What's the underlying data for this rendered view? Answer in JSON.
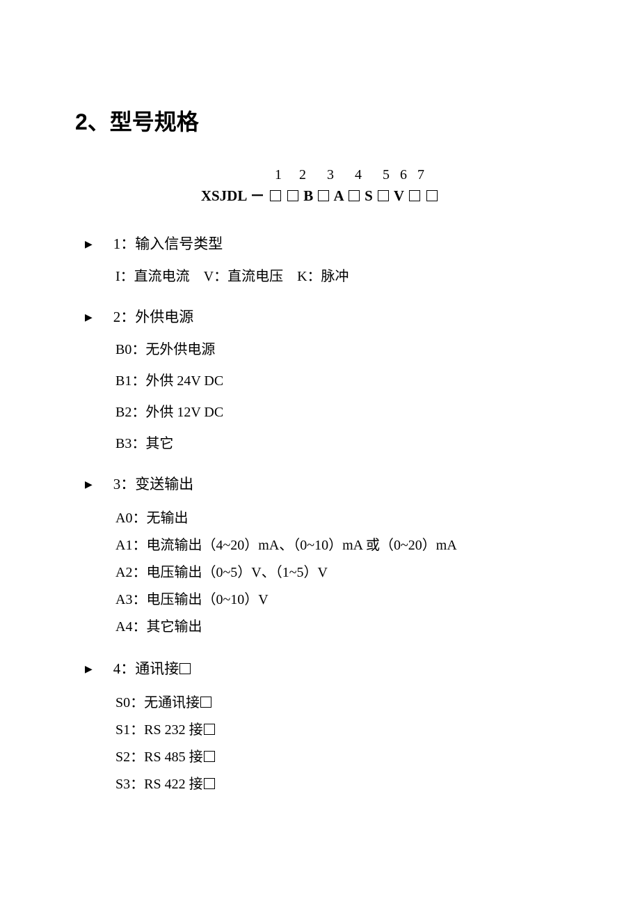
{
  "heading": "2、型号规格",
  "model": {
    "numbers": [
      "1",
      "2",
      "3",
      "4",
      "5",
      "6",
      "7"
    ],
    "prefix": "XSJDL",
    "dash": "－",
    "letters": [
      "",
      "B",
      "A",
      "S",
      "V",
      "",
      ""
    ]
  },
  "sections": [
    {
      "num": "1",
      "title": "：输入信号类型",
      "items": [
        {
          "text": "I：直流电流　V：直流电压　K：脉冲",
          "latin": false
        }
      ],
      "tight": false,
      "inline": true
    },
    {
      "num": "2",
      "title": "：外供电源",
      "items": [
        {
          "code": "B0",
          "text": "：无外供电源"
        },
        {
          "code": "B1",
          "text": "：外供 24V DC"
        },
        {
          "code": "B2",
          "text": "：外供 12V DC"
        },
        {
          "code": "B3",
          "text": "：其它"
        }
      ],
      "tight": false
    },
    {
      "num": "3",
      "title": "：变送输出",
      "items": [
        {
          "code": "A0",
          "text": "：无输出"
        },
        {
          "code": "A1",
          "text": "：电流输出（4~20）mA、（0~10）mA 或（0~20）mA"
        },
        {
          "code": "A2",
          "text": "：电压输出（0~5）V、（1~5）V"
        },
        {
          "code": "A3",
          "text": "：电压输出（0~10）V"
        },
        {
          "code": "A4",
          "text": "：其它输出"
        }
      ],
      "tight": true
    },
    {
      "num": "4",
      "title_parts": [
        "：通讯接",
        "__SQ__"
      ],
      "items": [
        {
          "code": "S0",
          "text_parts": [
            "：无通讯接",
            "__SQ__"
          ]
        },
        {
          "code": "S1",
          "text_parts": [
            "：RS 232 接",
            "__SQ__"
          ]
        },
        {
          "code": "S2",
          "text_parts": [
            "：RS 485 接",
            "__SQ__"
          ]
        },
        {
          "code": "S3",
          "text_parts": [
            "：RS 422 接",
            "__SQ__"
          ]
        }
      ],
      "tight": true
    }
  ]
}
